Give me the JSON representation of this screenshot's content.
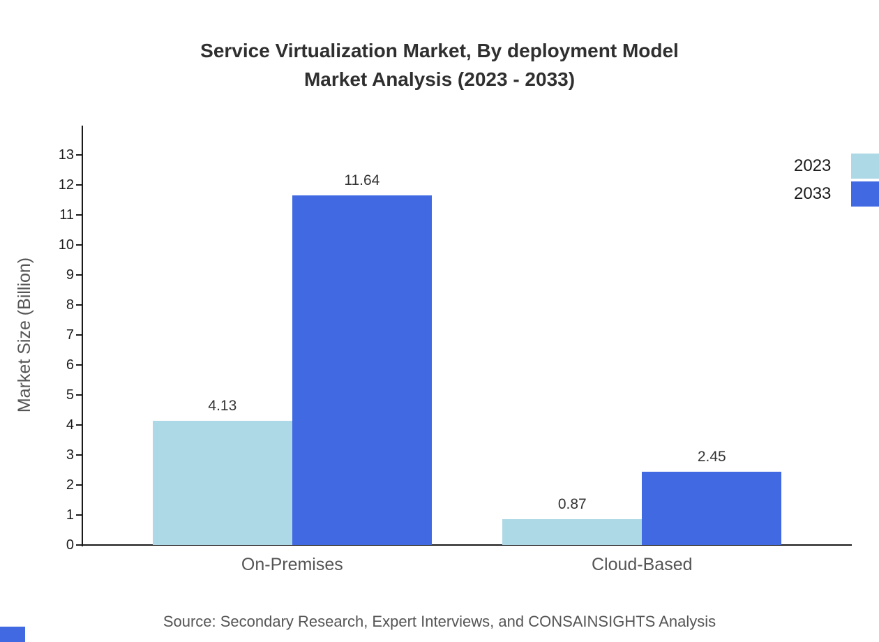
{
  "title": {
    "line1": "Service Virtualization Market, By deployment Model",
    "line2": "Market Analysis (2023 - 2033)"
  },
  "source": "Source: Secondary Research, Expert Interviews, and CONSAINSIGHTS Analysis",
  "chart_data": {
    "type": "bar",
    "title": "Service Virtualization Market, By deployment Model Market Analysis (2023 - 2033)",
    "categories": [
      "On-Premises",
      "Cloud-Based"
    ],
    "series": [
      {
        "name": "2023",
        "color": "#ADD8E6",
        "values": [
          4.13,
          0.87
        ]
      },
      {
        "name": "2033",
        "color": "#4169E1",
        "values": [
          11.64,
          2.45
        ]
      }
    ],
    "xlabel": "",
    "ylabel": "Market Size (Billion)",
    "ylim": [
      0,
      13
    ],
    "yticks": [
      0,
      1,
      2,
      3,
      4,
      5,
      6,
      7,
      8,
      9,
      10,
      11,
      12,
      13
    ],
    "grid": false,
    "legend_position": "top-right",
    "value_labels": [
      "4.13",
      "11.64",
      "0.87",
      "2.45"
    ]
  },
  "legend": {
    "items": [
      {
        "label": "2023",
        "color": "#ADD8E6"
      },
      {
        "label": "2033",
        "color": "#4169E1"
      }
    ]
  }
}
